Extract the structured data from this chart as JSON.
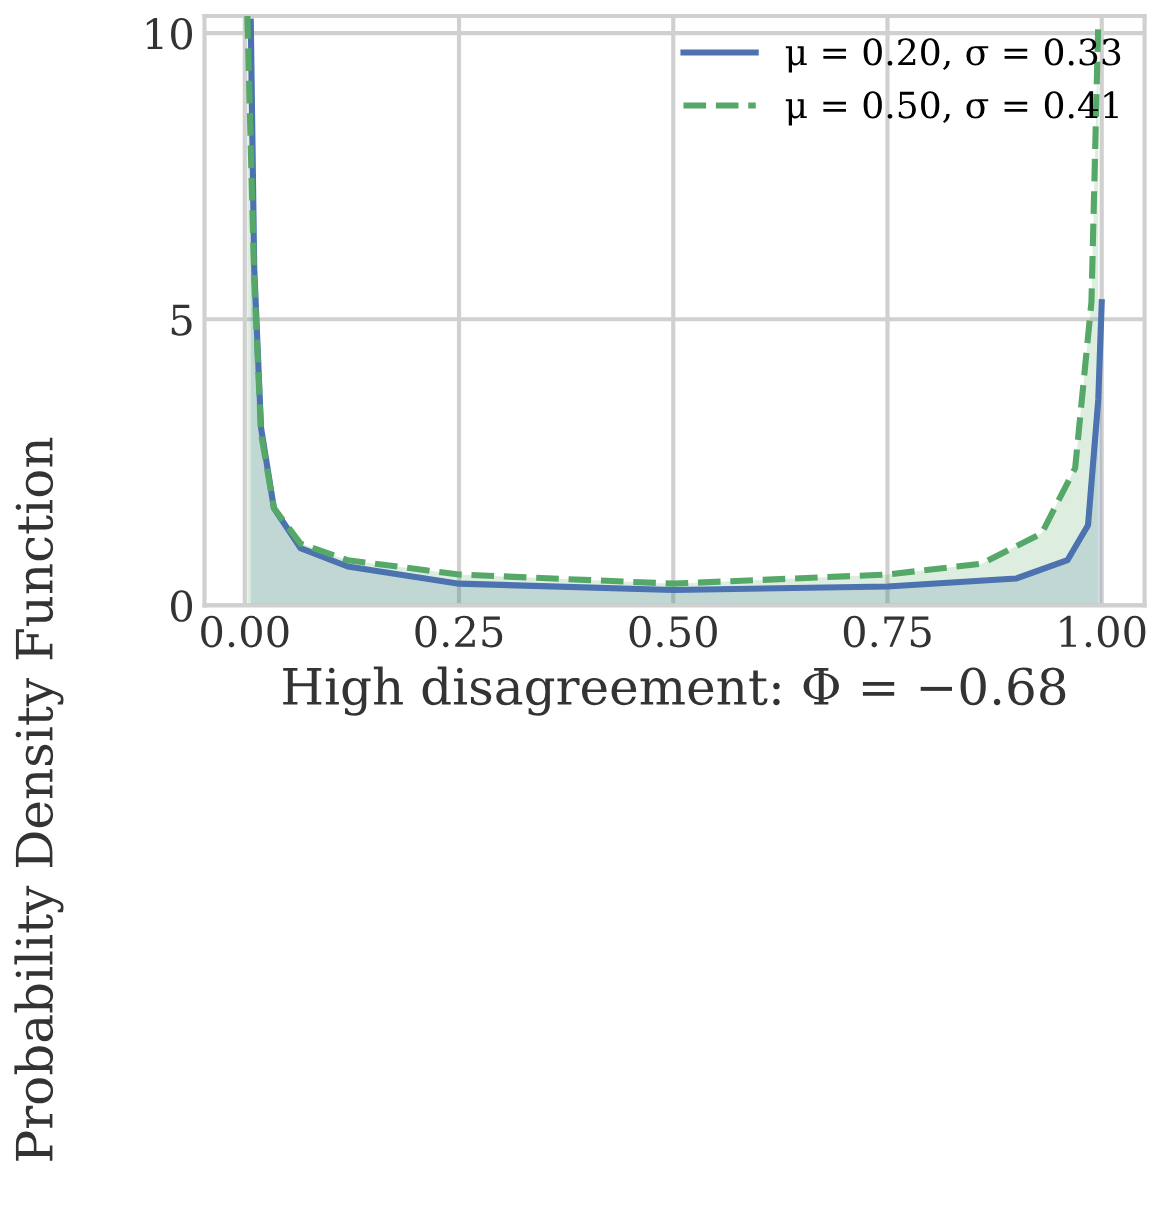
{
  "chart_data": {
    "type": "area",
    "xlabel": "High disagreement: Φ = −0.68",
    "ylabel": "Probability Density Function",
    "series": [
      {
        "name": "μ = 0.20, σ = 0.33",
        "color": "#4c72b0",
        "line_style": "solid",
        "x": [
          0.007,
          0.011,
          0.019,
          0.034,
          0.065,
          0.12,
          0.25,
          0.5,
          0.75,
          0.9,
          0.96,
          0.984,
          0.996,
          1.0
        ],
        "values": [
          10.2,
          5.9,
          3.1,
          1.7,
          1.0,
          0.68,
          0.38,
          0.27,
          0.33,
          0.47,
          0.79,
          1.4,
          3.6,
          5.3
        ]
      },
      {
        "name": "μ = 0.50, σ = 0.41",
        "color": "#55a868",
        "line_style": "dashed",
        "x": [
          0.003,
          0.011,
          0.019,
          0.034,
          0.065,
          0.12,
          0.25,
          0.5,
          0.75,
          0.86,
          0.93,
          0.969,
          0.988,
          0.996
        ],
        "values": [
          10.3,
          5.7,
          3.0,
          1.7,
          1.08,
          0.79,
          0.54,
          0.38,
          0.54,
          0.73,
          1.26,
          2.4,
          5.3,
          10.2
        ]
      }
    ],
    "xlim": [
      -0.047,
      1.05
    ],
    "ylim": [
      0,
      10.3
    ],
    "xticks": [
      {
        "value": 0,
        "label": "0.00"
      },
      {
        "value": 0.25,
        "label": "0.25"
      },
      {
        "value": 0.5,
        "label": "0.50"
      },
      {
        "value": 0.75,
        "label": "0.75"
      },
      {
        "value": 1,
        "label": "1.00"
      }
    ],
    "yticks": [
      0,
      5,
      10
    ],
    "grid": true,
    "legend": "top right"
  }
}
